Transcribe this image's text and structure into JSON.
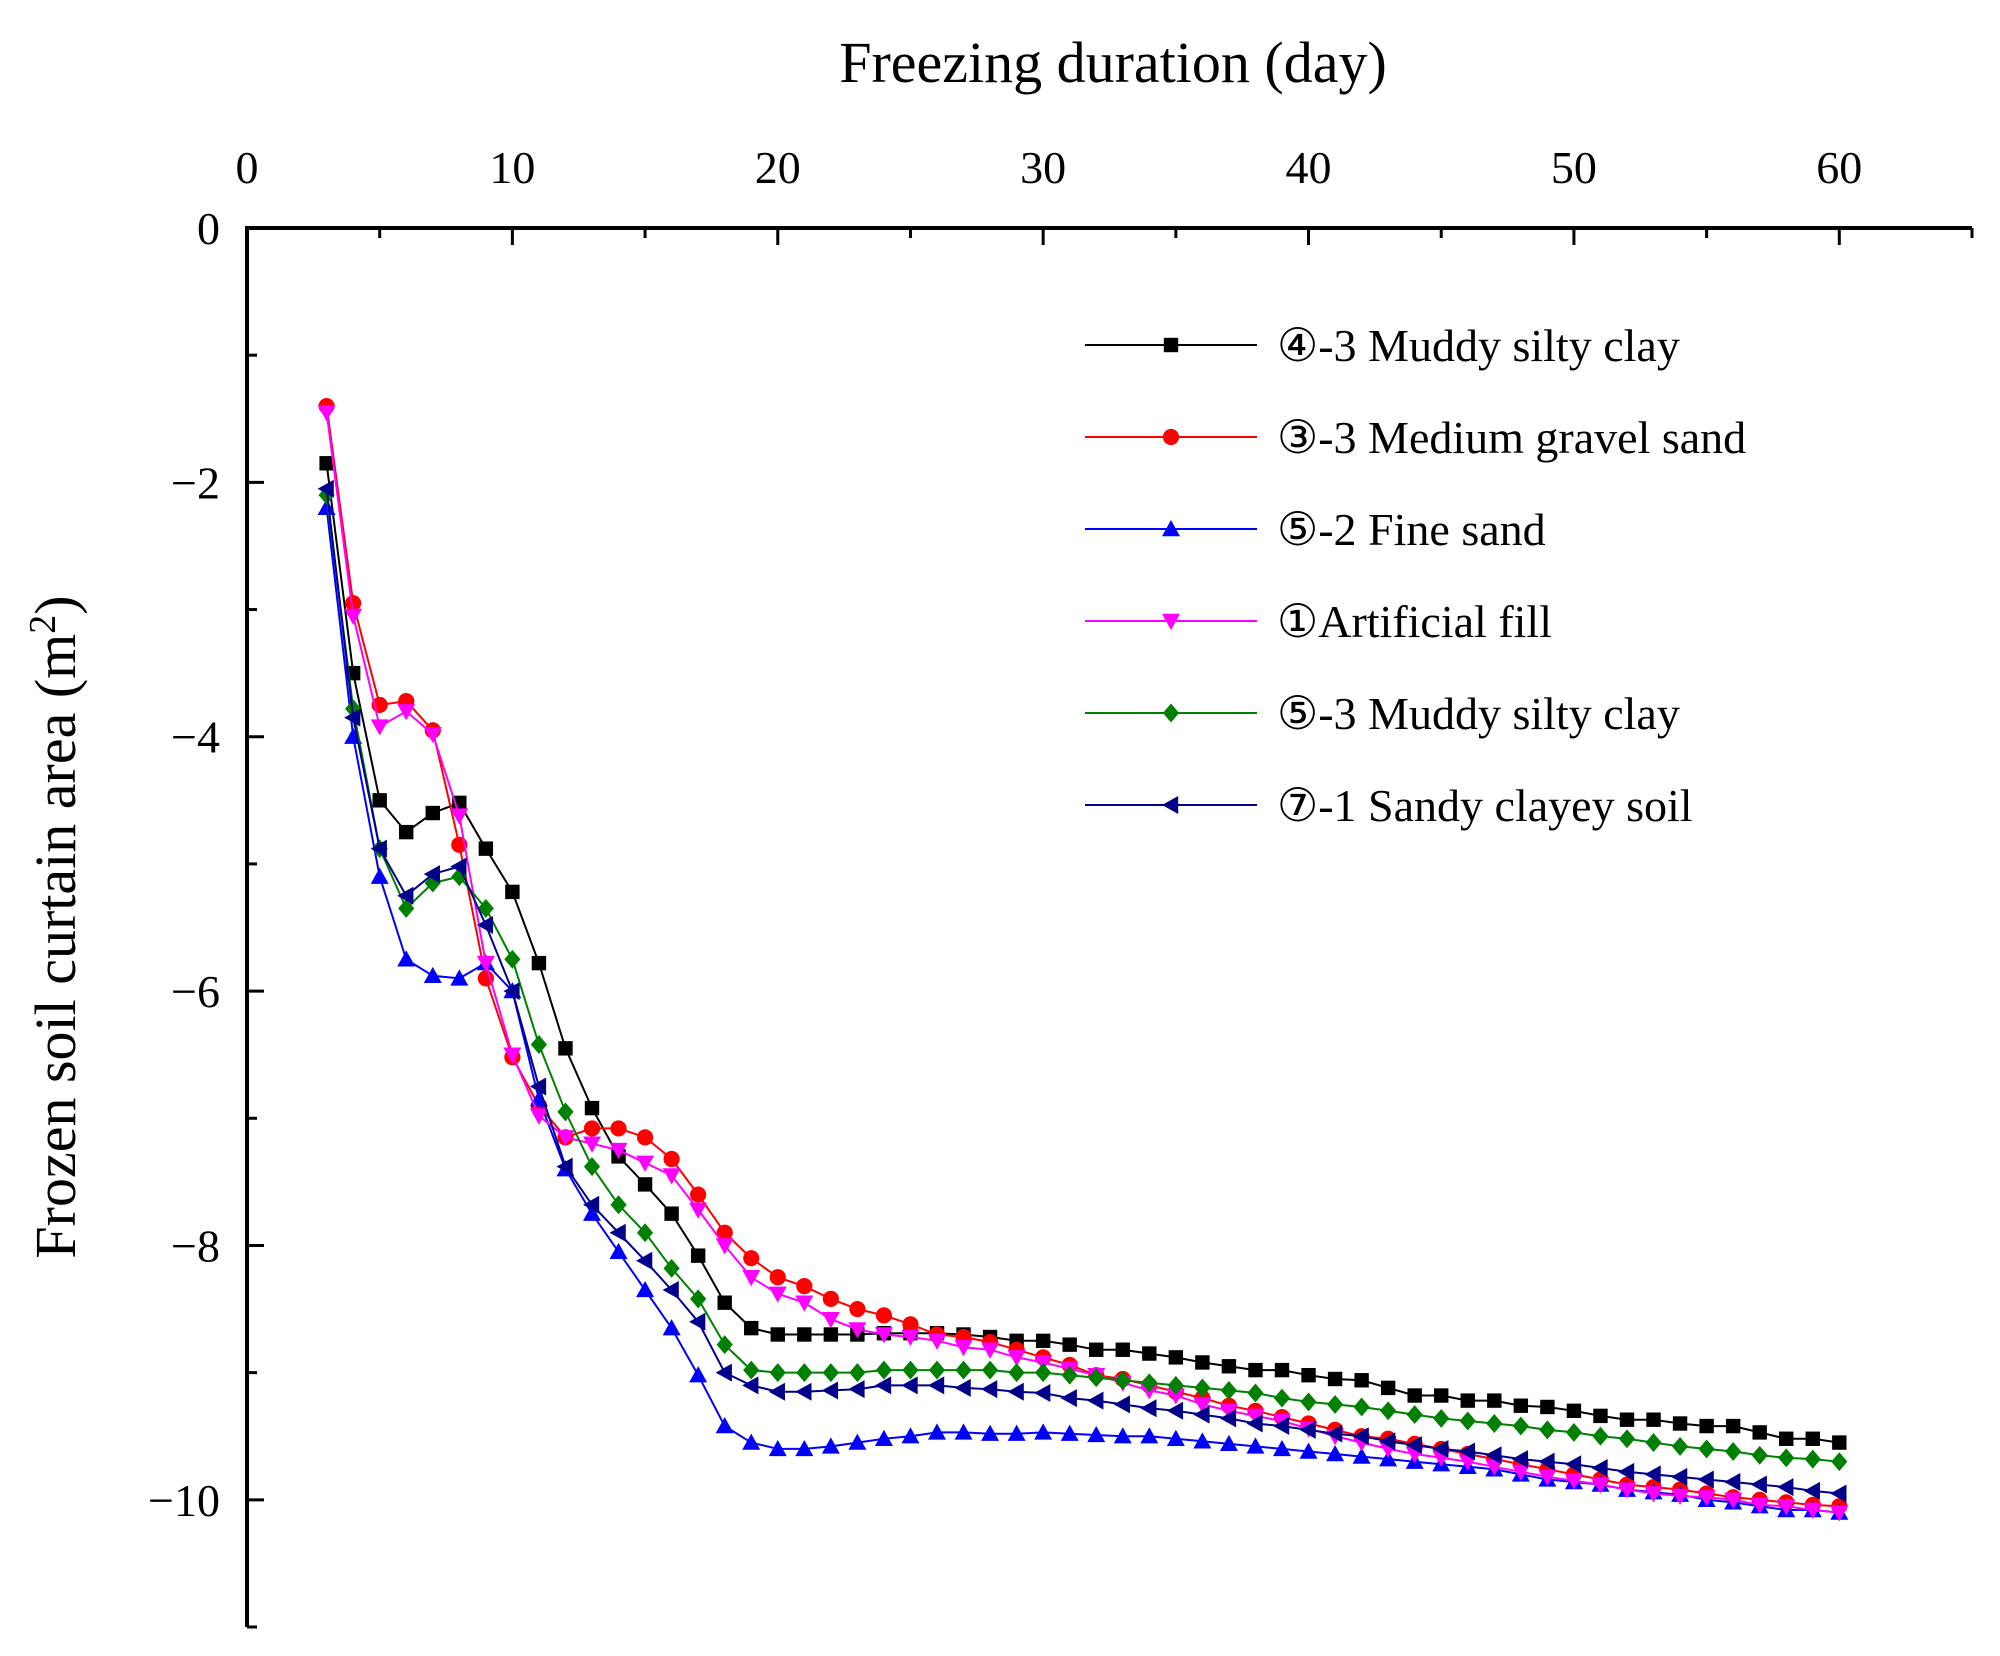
{
  "chart_data": {
    "type": "line",
    "title": "",
    "xlabel": "Freezing duration (day)",
    "ylabel_main": "Frozen soil curtain area (m",
    "ylabel_sup": "2",
    "ylabel_close": ")",
    "xlim": [
      0,
      65
    ],
    "ylim": [
      -11,
      0
    ],
    "xticks": [
      0,
      10,
      20,
      30,
      40,
      50,
      60
    ],
    "xtick_labels": [
      "0",
      "10",
      "20",
      "30",
      "40",
      "50",
      "60"
    ],
    "yticks": [
      0,
      -2,
      -4,
      -6,
      -8,
      -10
    ],
    "ytick_labels": [
      "0",
      "−2",
      "−4",
      "−6",
      "−8",
      "−10"
    ],
    "x": [
      3,
      4,
      5,
      6,
      7,
      8,
      9,
      10,
      11,
      12,
      13,
      14,
      15,
      16,
      17,
      18,
      19,
      20,
      21,
      22,
      23,
      24,
      25,
      26,
      27,
      28,
      29,
      30,
      31,
      32,
      33,
      34,
      35,
      36,
      37,
      38,
      39,
      40,
      41,
      42,
      43,
      44,
      45,
      46,
      47,
      48,
      49,
      50,
      51,
      52,
      53,
      54,
      55,
      56,
      57,
      58,
      59,
      60
    ],
    "legend_position": "top-right",
    "series": [
      {
        "name": "④-3 Muddy silty clay",
        "color": "#000000",
        "marker": "square",
        "values": [
          -1.85,
          -3.5,
          -4.5,
          -4.75,
          -4.6,
          -4.52,
          -4.88,
          -5.22,
          -5.78,
          -6.45,
          -6.92,
          -7.3,
          -7.52,
          -7.75,
          -8.08,
          -8.45,
          -8.65,
          -8.7,
          -8.7,
          -8.7,
          -8.7,
          -8.69,
          -8.69,
          -8.69,
          -8.7,
          -8.72,
          -8.75,
          -8.75,
          -8.78,
          -8.82,
          -8.82,
          -8.85,
          -8.88,
          -8.92,
          -8.95,
          -8.98,
          -8.98,
          -9.02,
          -9.05,
          -9.06,
          -9.12,
          -9.18,
          -9.18,
          -9.22,
          -9.22,
          -9.26,
          -9.27,
          -9.3,
          -9.34,
          -9.37,
          -9.37,
          -9.4,
          -9.42,
          -9.42,
          -9.47,
          -9.52,
          -9.52,
          -9.55
        ]
      },
      {
        "name": "③-3 Medium gravel sand",
        "color": "#ff0000",
        "marker": "circle",
        "values": [
          -1.4,
          -2.95,
          -3.75,
          -3.72,
          -3.95,
          -4.85,
          -5.9,
          -6.52,
          -6.9,
          -7.15,
          -7.08,
          -7.08,
          -7.15,
          -7.32,
          -7.6,
          -7.9,
          -8.1,
          -8.25,
          -8.32,
          -8.42,
          -8.5,
          -8.55,
          -8.62,
          -8.7,
          -8.72,
          -8.76,
          -8.82,
          -8.88,
          -8.94,
          -9.02,
          -9.05,
          -9.1,
          -9.15,
          -9.2,
          -9.26,
          -9.3,
          -9.35,
          -9.4,
          -9.45,
          -9.5,
          -9.52,
          -9.56,
          -9.6,
          -9.64,
          -9.68,
          -9.72,
          -9.76,
          -9.8,
          -9.84,
          -9.88,
          -9.9,
          -9.92,
          -9.95,
          -9.98,
          -10.0,
          -10.02,
          -10.04,
          -10.05
        ]
      },
      {
        "name": "⑤-2 Fine sand",
        "color": "#0000ff",
        "marker": "triangle-up",
        "values": [
          -2.2,
          -4.0,
          -5.1,
          -5.75,
          -5.88,
          -5.9,
          -5.78,
          -6.0,
          -6.85,
          -7.4,
          -7.75,
          -8.05,
          -8.35,
          -8.65,
          -9.02,
          -9.42,
          -9.55,
          -9.6,
          -9.6,
          -9.58,
          -9.55,
          -9.52,
          -9.5,
          -9.47,
          -9.47,
          -9.48,
          -9.48,
          -9.47,
          -9.48,
          -9.49,
          -9.5,
          -9.5,
          -9.52,
          -9.54,
          -9.56,
          -9.58,
          -9.6,
          -9.62,
          -9.64,
          -9.66,
          -9.68,
          -9.7,
          -9.72,
          -9.74,
          -9.76,
          -9.8,
          -9.84,
          -9.86,
          -9.88,
          -9.92,
          -9.94,
          -9.96,
          -10.0,
          -10.02,
          -10.05,
          -10.08,
          -10.08,
          -10.1
        ]
      },
      {
        "name": "①Artificial fill",
        "color": "#ff00ff",
        "marker": "triangle-down",
        "values": [
          -1.45,
          -3.05,
          -3.92,
          -3.8,
          -3.98,
          -4.62,
          -5.78,
          -6.5,
          -6.98,
          -7.15,
          -7.2,
          -7.25,
          -7.35,
          -7.45,
          -7.72,
          -8.0,
          -8.25,
          -8.38,
          -8.45,
          -8.58,
          -8.66,
          -8.7,
          -8.72,
          -8.75,
          -8.8,
          -8.82,
          -8.88,
          -8.92,
          -8.97,
          -9.02,
          -9.08,
          -9.14,
          -9.18,
          -9.25,
          -9.3,
          -9.34,
          -9.38,
          -9.44,
          -9.5,
          -9.55,
          -9.6,
          -9.64,
          -9.67,
          -9.7,
          -9.74,
          -9.78,
          -9.82,
          -9.85,
          -9.88,
          -9.92,
          -9.95,
          -9.97,
          -9.98,
          -10.0,
          -10.04,
          -10.05,
          -10.08,
          -10.1
        ]
      },
      {
        "name": "⑤-3 Muddy silty clay",
        "color": "#008000",
        "marker": "diamond",
        "values": [
          -2.1,
          -3.78,
          -4.88,
          -5.35,
          -5.15,
          -5.1,
          -5.35,
          -5.75,
          -6.42,
          -6.95,
          -7.38,
          -7.68,
          -7.9,
          -8.18,
          -8.42,
          -8.78,
          -8.98,
          -9.0,
          -9.0,
          -9.0,
          -9.0,
          -8.98,
          -8.98,
          -8.98,
          -8.98,
          -8.98,
          -9.0,
          -9.0,
          -9.02,
          -9.04,
          -9.06,
          -9.08,
          -9.1,
          -9.12,
          -9.14,
          -9.16,
          -9.2,
          -9.23,
          -9.25,
          -9.27,
          -9.3,
          -9.33,
          -9.36,
          -9.38,
          -9.4,
          -9.42,
          -9.45,
          -9.47,
          -9.5,
          -9.52,
          -9.55,
          -9.58,
          -9.6,
          -9.62,
          -9.65,
          -9.67,
          -9.68,
          -9.7
        ]
      },
      {
        "name": "⑦-1 Sandy clayey soil",
        "color": "#00008b",
        "marker": "triangle-left",
        "values": [
          -2.05,
          -3.85,
          -4.88,
          -5.25,
          -5.08,
          -5.02,
          -5.48,
          -6.0,
          -6.75,
          -7.38,
          -7.68,
          -7.9,
          -8.12,
          -8.35,
          -8.6,
          -9.0,
          -9.1,
          -9.15,
          -9.15,
          -9.14,
          -9.13,
          -9.1,
          -9.1,
          -9.1,
          -9.12,
          -9.13,
          -9.15,
          -9.16,
          -9.2,
          -9.22,
          -9.25,
          -9.28,
          -9.3,
          -9.33,
          -9.36,
          -9.4,
          -9.42,
          -9.45,
          -9.48,
          -9.5,
          -9.54,
          -9.57,
          -9.6,
          -9.62,
          -9.65,
          -9.68,
          -9.7,
          -9.72,
          -9.75,
          -9.78,
          -9.8,
          -9.82,
          -9.84,
          -9.86,
          -9.88,
          -9.9,
          -9.93,
          -9.95
        ]
      }
    ]
  }
}
